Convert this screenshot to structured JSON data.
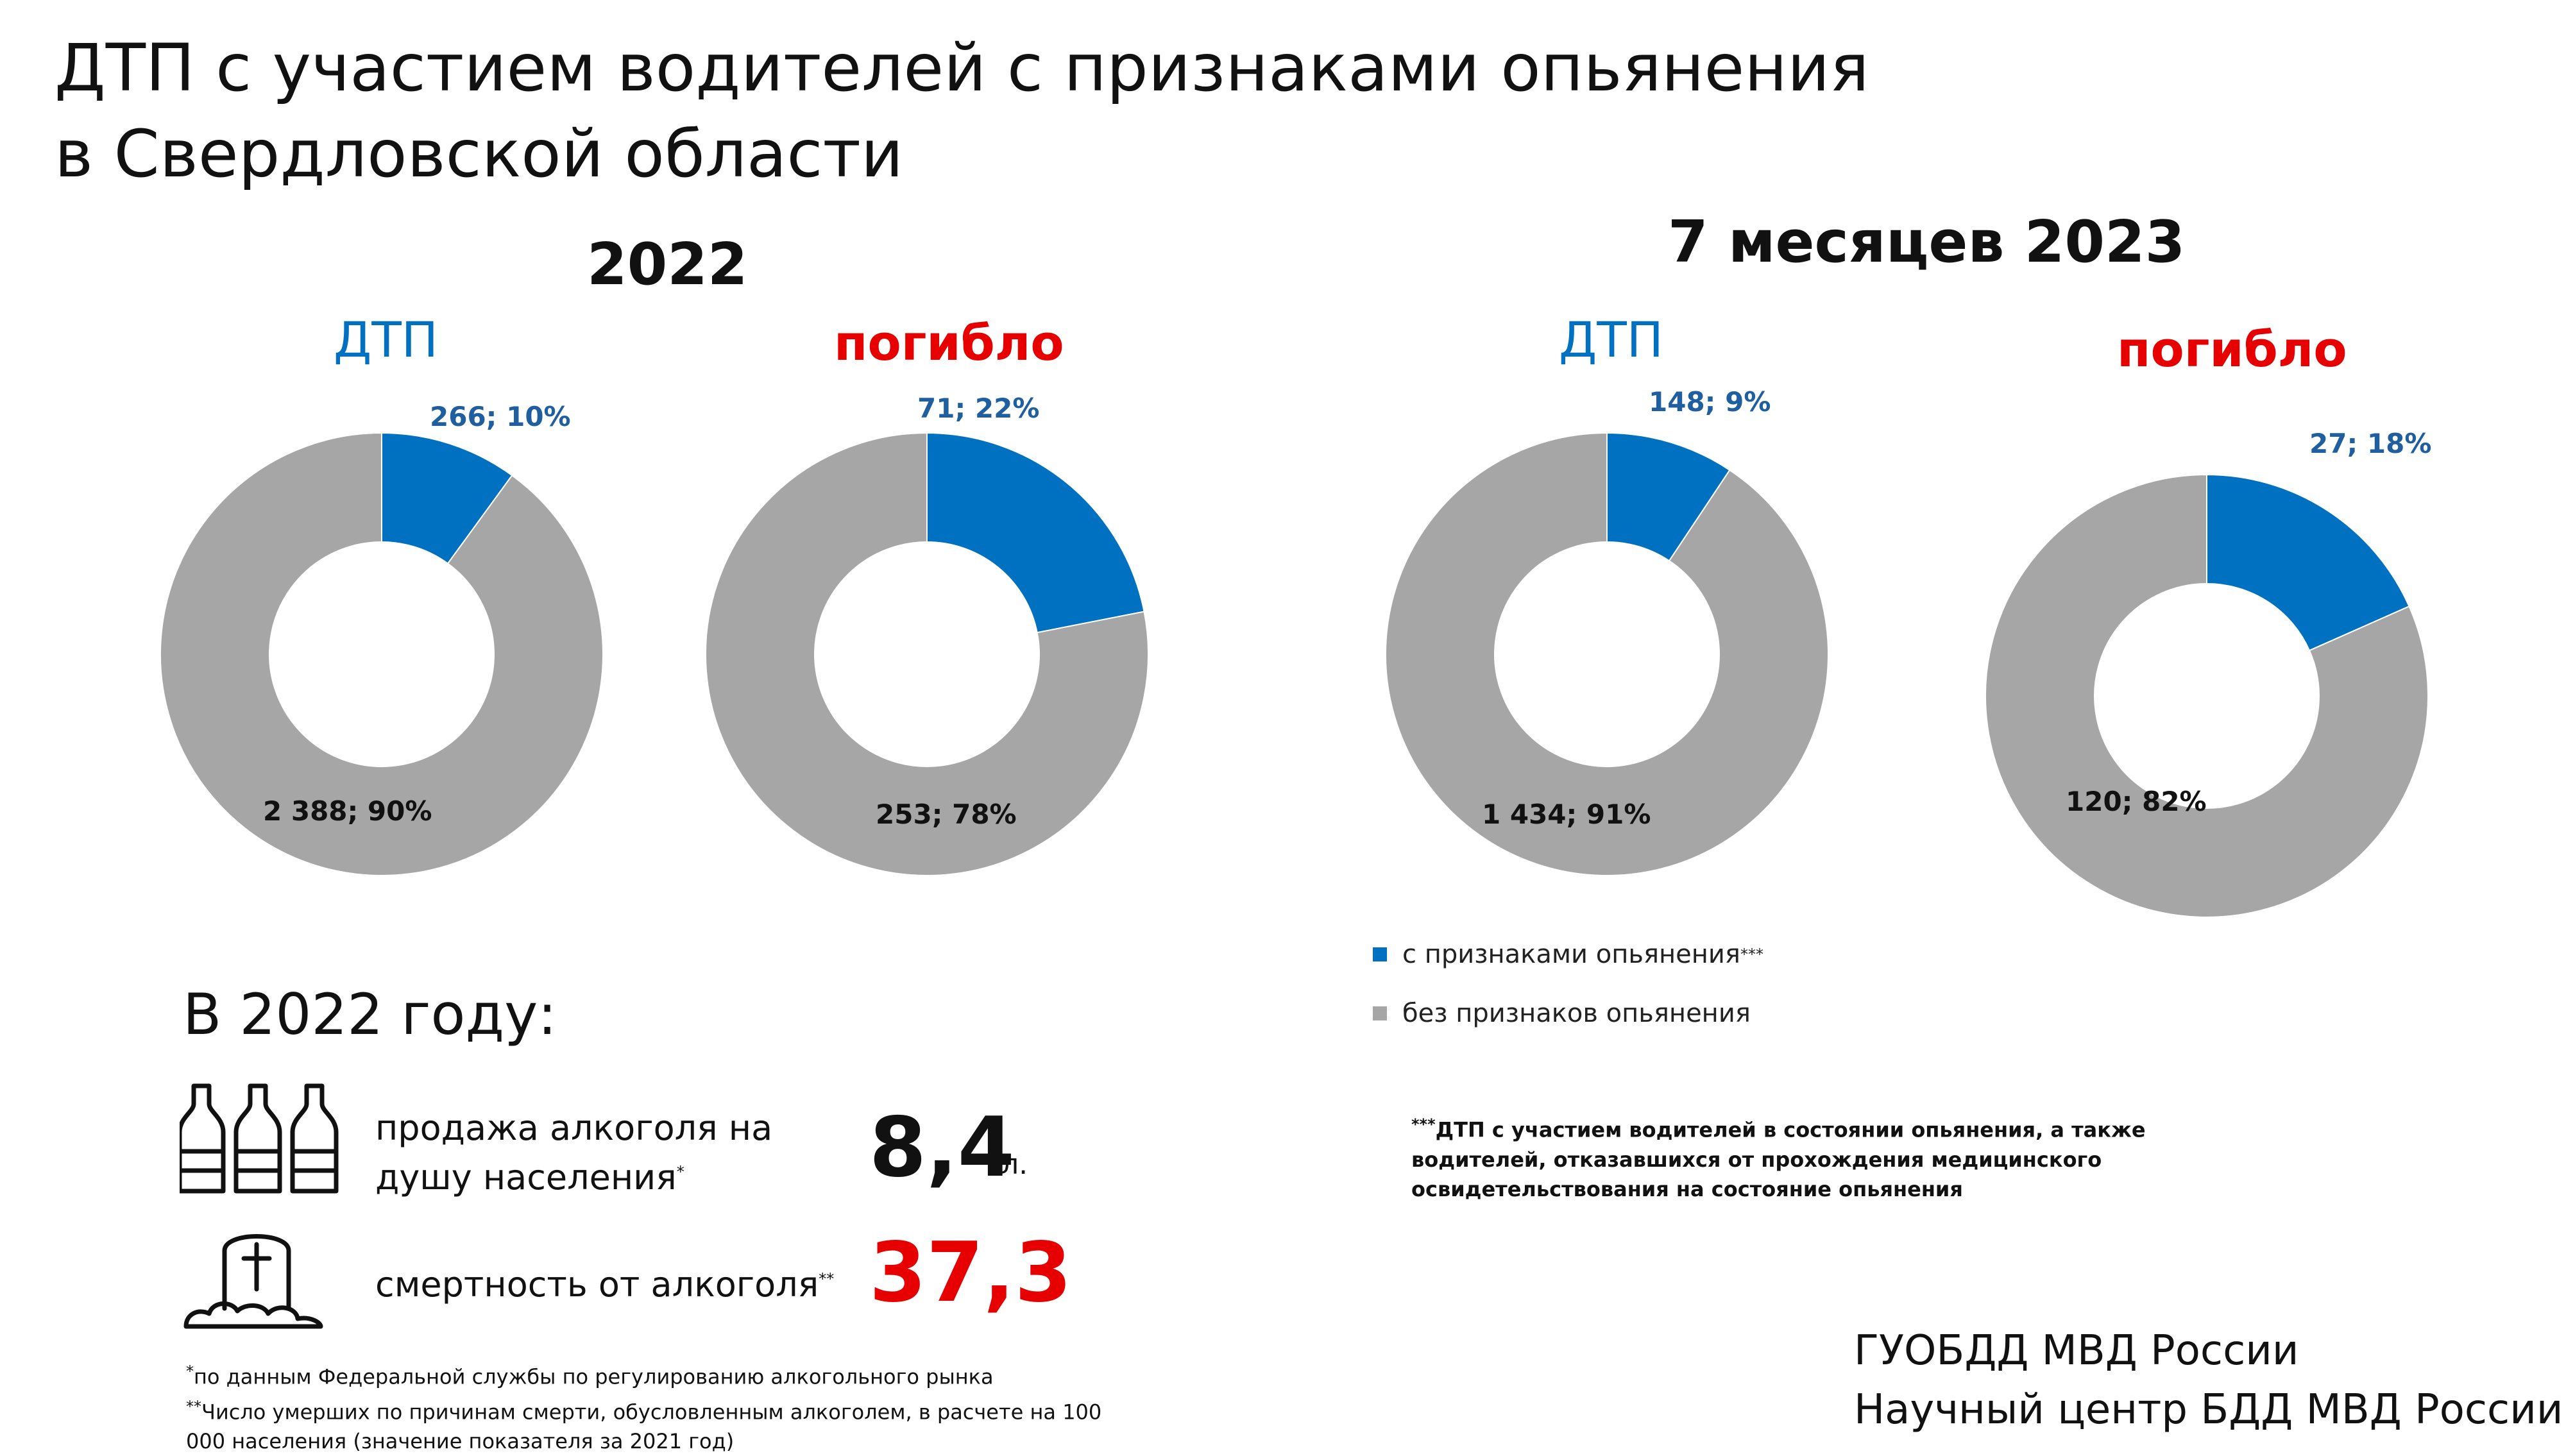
{
  "title_line1": "ДТП с участием водителей с признаками опьянения",
  "title_line2": "в Свердловской области",
  "colors": {
    "blue": "#0070c0",
    "gray": "#a6a6a6",
    "red": "#e60000"
  },
  "panels": [
    {
      "year_label": "2022"
    },
    {
      "year_label": "7 месяцев 2023"
    }
  ],
  "chart_data": [
    {
      "type": "pie",
      "panel": "2022",
      "title": "ДТП",
      "categories": [
        "с признаками опьянения",
        "без признаков опьянения"
      ],
      "values": [
        266,
        2388
      ],
      "percents": [
        10,
        90
      ],
      "labels": [
        "266; 10%",
        "2 388; 90%"
      ]
    },
    {
      "type": "pie",
      "panel": "2022",
      "title": "погибло",
      "categories": [
        "с признаками опьянения",
        "без признаков опьянения"
      ],
      "values": [
        71,
        253
      ],
      "percents": [
        22,
        78
      ],
      "labels": [
        "71; 22%",
        "253; 78%"
      ]
    },
    {
      "type": "pie",
      "panel": "7 месяцев 2023",
      "title": "ДТП",
      "categories": [
        "с признаками опьянения",
        "без признаков опьянения"
      ],
      "values": [
        148,
        1434
      ],
      "percents": [
        9,
        91
      ],
      "labels": [
        "148; 9%",
        "1 434; 91%"
      ]
    },
    {
      "type": "pie",
      "panel": "7 месяцев 2023",
      "title": "погибло",
      "categories": [
        "с признаками опьянения",
        "без признаков опьянения"
      ],
      "values": [
        27,
        120
      ],
      "percents": [
        18,
        82
      ],
      "labels": [
        "27; 18%",
        "120; 82%"
      ]
    }
  ],
  "legend": [
    {
      "label": "с признаками опьянения",
      "sup": "***",
      "color": "#0070c0"
    },
    {
      "label": "без признаков опьянения",
      "sup": "",
      "color": "#a6a6a6"
    }
  ],
  "footnote_mark": "***",
  "footnote_text": "ДТП с участием водителей в состоянии опьянения, а также водителей, отказавшихся от прохождения медицинского освидетельствования на состояние опьянения",
  "stats": {
    "heading": "В 2022 году:",
    "items": [
      {
        "label_line1": "продажа алкоголя на",
        "label_line2": "душу населения",
        "sup": "*",
        "value": "8,4",
        "unit": "л.",
        "icon": "bottles-icon",
        "value_color": "#111111"
      },
      {
        "label_line1": "смертность от алкоголя",
        "label_line2": "",
        "sup": "**",
        "value": "37,3",
        "unit": "",
        "icon": "grave-icon",
        "value_color": "#e60000"
      }
    ]
  },
  "notes": [
    {
      "mark": "*",
      "text": "по данным Федеральной службы по регулированию алкогольного рынка"
    },
    {
      "mark": "**",
      "text": "Число умерших по причинам смерти, обусловленным алкоголем, в расчете на 100 000 населения (значение показателя за 2021 год)"
    }
  ],
  "source": {
    "line1": "ГУОБДД МВД России",
    "line2": "Научный центр БДД МВД России"
  }
}
